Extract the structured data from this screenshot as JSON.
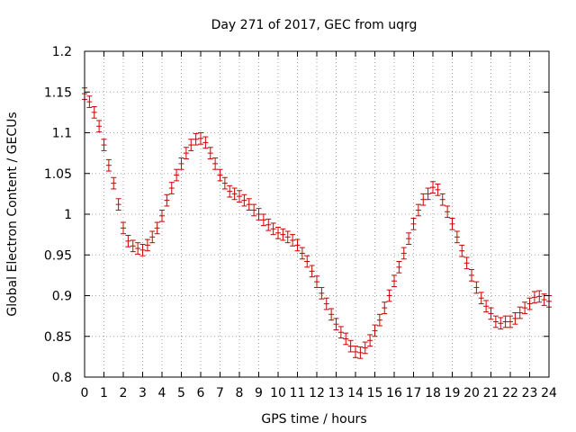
{
  "chart_data": {
    "type": "scatter",
    "title": "Day 271 of 2017, GEC from uqrg",
    "xlabel": "GPS time / hours",
    "ylabel": "Global Electron Content / GECUs",
    "xlim": [
      0,
      24
    ],
    "ylim": [
      0.8,
      1.2
    ],
    "xticks": [
      0,
      1,
      2,
      3,
      4,
      5,
      6,
      7,
      8,
      9,
      10,
      11,
      12,
      13,
      14,
      15,
      16,
      17,
      18,
      19,
      20,
      21,
      22,
      23,
      24
    ],
    "yticks": [
      0.8,
      0.85,
      0.9,
      0.95,
      1,
      1.05,
      1.1,
      1.15,
      1.2
    ],
    "ytick_labels": [
      "0.8",
      "0.85",
      "0.9",
      "0.95",
      "1",
      "1.05",
      "1.1",
      "1.15",
      "1.2"
    ],
    "grid": true,
    "error_bars": true,
    "error_half_width": 0.007,
    "series": [
      {
        "color": "#cc0000",
        "x": [
          0,
          0.25,
          0.5,
          0.75,
          1,
          1.25,
          1.5,
          1.75,
          2,
          2.25,
          2.5,
          2.75,
          3,
          3.25,
          3.5,
          3.75,
          4,
          4.25,
          4.5,
          4.75,
          5,
          5.25,
          5.5,
          5.75,
          6,
          6.25,
          6.5,
          6.75,
          7,
          7.25,
          7.5,
          7.75,
          8,
          8.25,
          8.5,
          8.75,
          9,
          9.25,
          9.5,
          9.75,
          10,
          10.25,
          10.5,
          10.75,
          11,
          11.25,
          11.5,
          11.75,
          12,
          12.25,
          12.5,
          12.75,
          13,
          13.25,
          13.5,
          13.75,
          14,
          14.25,
          14.5,
          14.75,
          15,
          15.25,
          15.5,
          15.75,
          16,
          16.25,
          16.5,
          16.75,
          17,
          17.25,
          17.5,
          17.75,
          18,
          18.25,
          18.5,
          18.75,
          19,
          19.25,
          19.5,
          19.75,
          20,
          20.25,
          20.5,
          20.75,
          21,
          21.25,
          21.5,
          21.75,
          22,
          22.25,
          22.5,
          22.75,
          23,
          23.25,
          23.5,
          23.75,
          24
        ],
        "y": [
          1.148,
          1.138,
          1.125,
          1.108,
          1.085,
          1.06,
          1.038,
          1.012,
          0.983,
          0.967,
          0.961,
          0.958,
          0.956,
          0.962,
          0.972,
          0.983,
          0.998,
          1.017,
          1.032,
          1.048,
          1.062,
          1.075,
          1.085,
          1.092,
          1.093,
          1.088,
          1.075,
          1.062,
          1.048,
          1.038,
          1.028,
          1.025,
          1.022,
          1.017,
          1.012,
          1.005,
          1.0,
          0.993,
          0.987,
          0.982,
          0.977,
          0.975,
          0.972,
          0.968,
          0.962,
          0.952,
          0.942,
          0.93,
          0.917,
          0.903,
          0.89,
          0.877,
          0.865,
          0.855,
          0.847,
          0.838,
          0.831,
          0.83,
          0.836,
          0.845,
          0.857,
          0.87,
          0.885,
          0.9,
          0.918,
          0.935,
          0.952,
          0.97,
          0.988,
          1.005,
          1.018,
          1.025,
          1.033,
          1.03,
          1.018,
          1.003,
          0.988,
          0.972,
          0.955,
          0.94,
          0.925,
          0.91,
          0.897,
          0.887,
          0.878,
          0.868,
          0.866,
          0.868,
          0.868,
          0.872,
          0.879,
          0.885,
          0.89,
          0.898,
          0.899,
          0.895,
          0.893
        ]
      }
    ]
  }
}
